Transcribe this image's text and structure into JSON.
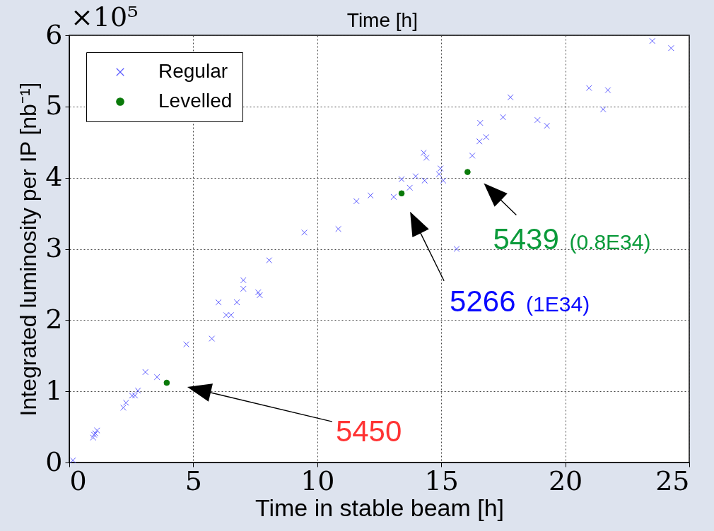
{
  "chart_data": {
    "type": "scatter",
    "xlabel": "Time in stable beam [h]",
    "ylabel": "Integrated luminosity per IP [nb⁻¹]",
    "xlim": [
      0,
      25
    ],
    "xticks": [
      0,
      5,
      10,
      15,
      20,
      25
    ],
    "ylim": [
      0,
      6
    ],
    "yticks": [
      0,
      1,
      2,
      3,
      4,
      5,
      6
    ],
    "grid": true,
    "legend": "top left",
    "series": [
      {
        "name": "Regular",
        "color": "#5a5aff",
        "marker": "cross",
        "x": [
          0.15,
          0.96,
          1.0,
          1.05,
          1.12,
          2.18,
          2.29,
          2.53,
          2.65,
          2.77,
          3.07,
          3.54,
          4.72,
          5.75,
          6.02,
          6.33,
          6.52,
          6.76,
          7.02,
          7.02,
          7.62,
          7.68,
          8.06,
          9.48,
          10.85,
          11.58,
          12.15,
          13.08,
          13.4,
          13.73,
          13.97,
          14.33,
          14.29,
          14.4,
          14.91,
          14.97,
          15.08,
          15.62,
          16.25,
          16.54,
          16.81,
          16.57,
          17.49,
          17.79,
          18.88,
          19.26,
          20.96,
          21.72,
          21.53,
          23.51,
          24.27
        ],
        "values": [
          0.03,
          0.35,
          0.39,
          0.41,
          0.45,
          0.77,
          0.84,
          0.94,
          0.94,
          1.01,
          1.27,
          1.2,
          1.66,
          1.74,
          2.25,
          2.07,
          2.07,
          2.25,
          2.56,
          2.44,
          2.39,
          2.35,
          2.84,
          3.23,
          3.28,
          3.67,
          3.75,
          3.73,
          3.98,
          3.86,
          4.02,
          3.96,
          4.35,
          4.28,
          4.05,
          4.13,
          3.96,
          3.0,
          4.31,
          4.51,
          4.57,
          4.77,
          4.85,
          5.13,
          4.81,
          4.73,
          5.26,
          5.23,
          4.96,
          5.92,
          5.82
        ]
      },
      {
        "name": "Levelled",
        "color": "#0a7a0a",
        "marker": "circle",
        "x": [
          3.93,
          13.4,
          16.06
        ],
        "values": [
          1.12,
          3.78,
          4.08
        ]
      }
    ],
    "annotations": [
      "×10⁵",
      "Time [h]",
      "5450",
      "5266 (1E34)",
      {
        "text": "5439 (0.8E34)",
        "x": 16.06,
        "y": 4.08
      }
    ]
  }
}
